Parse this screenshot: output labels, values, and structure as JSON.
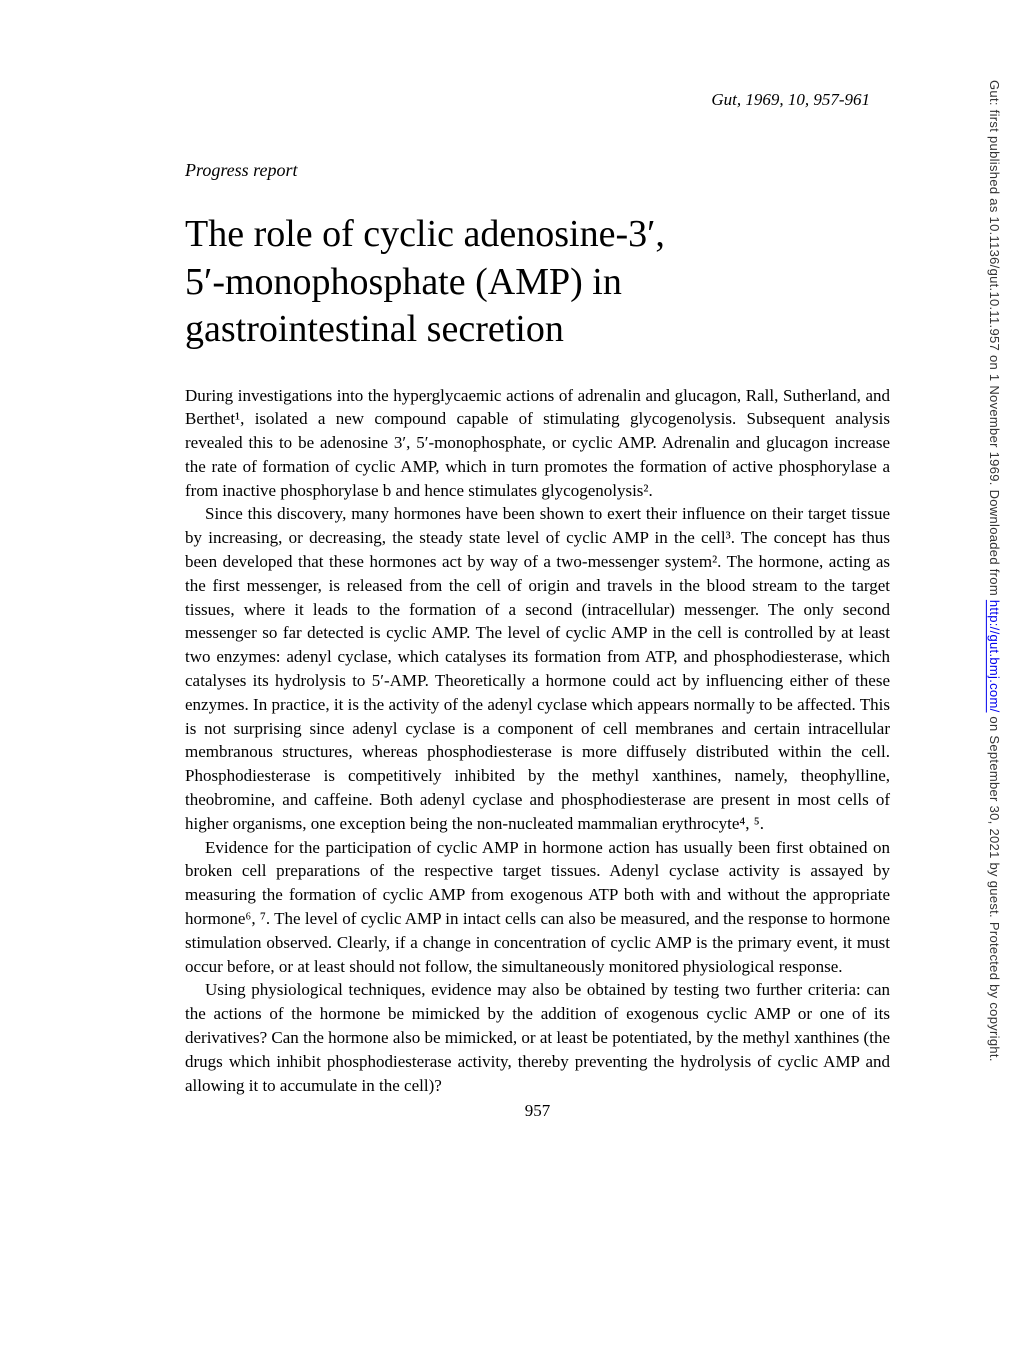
{
  "citation": "Gut, 1969, 10, 957-961",
  "report_type": "Progress report",
  "title_line1": "The role of cyclic adenosine-3′,",
  "title_line2": "5′-monophosphate (AMP) in",
  "title_line3": "gastrointestinal secretion",
  "paragraphs": {
    "p1": "During investigations into the hyperglycaemic actions of adrenalin and glucagon, Rall, Sutherland, and Berthet¹, isolated a new compound capable of stimulating glycogenolysis. Subsequent analysis revealed this to be adenosine 3′, 5′-monophosphate, or cyclic AMP. Adrenalin and glucagon increase the rate of formation of cyclic AMP, which in turn promotes the formation of active phosphorylase a from inactive phosphorylase b and hence stimulates glycogenolysis².",
    "p2": "Since this discovery, many hormones have been shown to exert their influence on their target tissue by increasing, or decreasing, the steady state level of cyclic AMP in the cell³. The concept has thus been developed that these hormones act by way of a two-messenger system². The hormone, acting as the first messenger, is released from the cell of origin and travels in the blood stream to the target tissues, where it leads to the formation of a second (intracellular) messenger. The only second messenger so far detected is cyclic AMP. The level of cyclic AMP in the cell is controlled by at least two enzymes: adenyl cyclase, which catalyses its formation from ATP, and phosphodiesterase, which catalyses its hydrolysis to 5′-AMP. Theoretically a hormone could act by influencing either of these enzymes. In practice, it is the activity of the adenyl cyclase which appears normally to be affected. This is not surprising since adenyl cyclase is a component of cell membranes and certain intracellular membranous structures, whereas phosphodiesterase is more diffusely distributed within the cell. Phosphodiesterase is competitively inhibited by the methyl xanthines, namely, theophylline, theobromine, and caffeine. Both adenyl cyclase and phosphodiesterase are present in most cells of higher organisms, one exception being the non-nucleated mammalian erythrocyte⁴, ⁵.",
    "p3": "Evidence for the participation of cyclic AMP in hormone action has usually been first obtained on broken cell preparations of the respective target tissues. Adenyl cyclase activity is assayed by measuring the formation of cyclic AMP from exogenous ATP both with and without the appropriate hormone⁶, ⁷. The level of cyclic AMP in intact cells can also be measured, and the response to hormone stimulation observed. Clearly, if a change in concentration of cyclic AMP is the primary event, it must occur before, or at least should not follow, the simultaneously monitored physiological response.",
    "p4": "Using physiological techniques, evidence may also be obtained by testing two further criteria: can the actions of the hormone be mimicked by the addition of exogenous cyclic AMP or one of its derivatives? Can the hormone also be mimicked, or at least be potentiated, by the methyl xanthines (the drugs which inhibit phosphodiesterase activity, thereby preventing the hydrolysis of cyclic AMP and allowing it to accumulate in the cell)?"
  },
  "page_number": "957",
  "sidebar": {
    "prefix": "Gut: first published as 10.1136/gut.10.11.957 on 1 November 1969. Downloaded from ",
    "link_text": "http://gut.bmj.com/",
    "suffix": " on September 30, 2021 by guest. Protected by copyright."
  }
}
